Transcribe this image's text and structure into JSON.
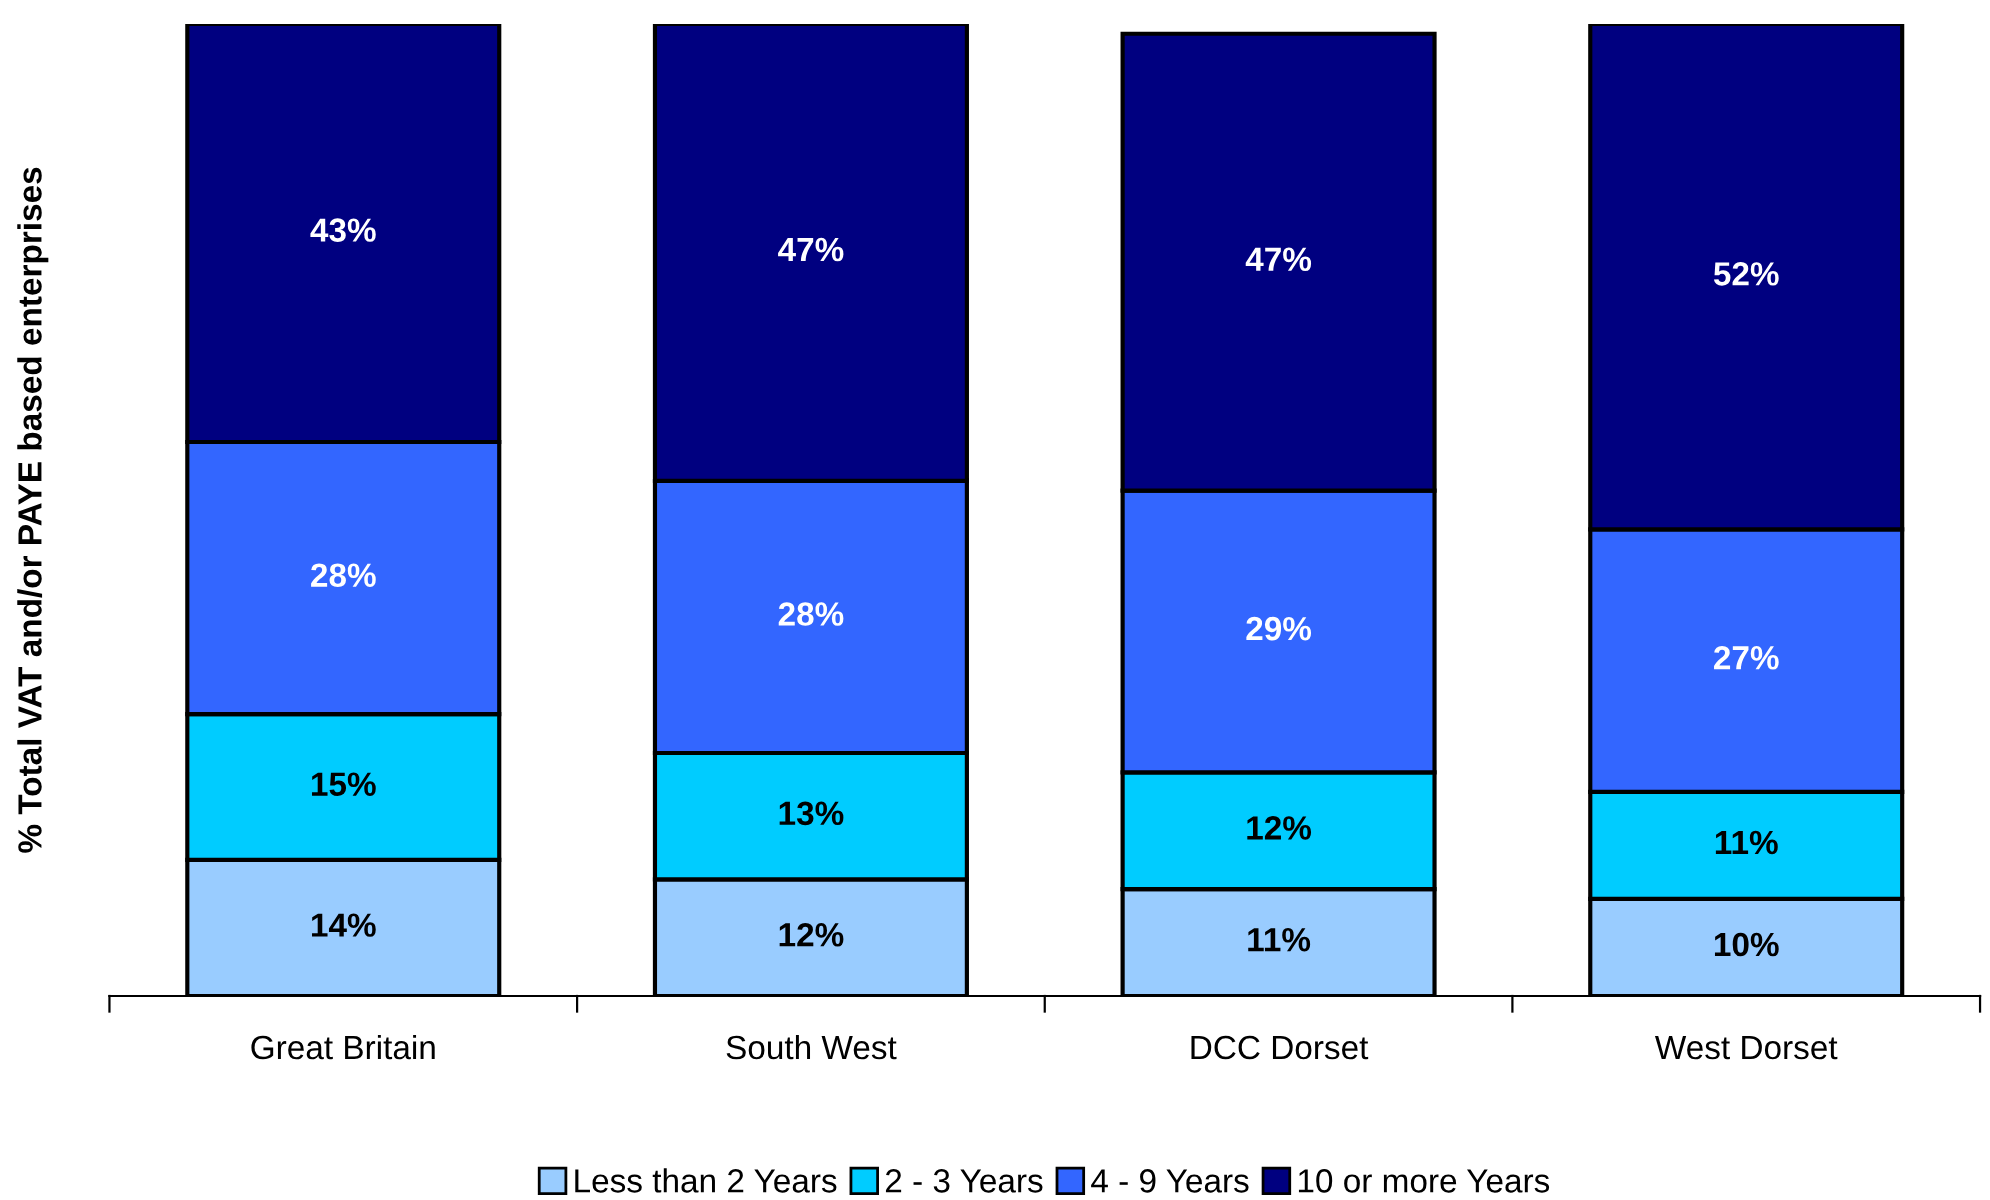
{
  "chart_data": {
    "type": "bar",
    "stacked": true,
    "ylabel": "% Total VAT and/or PAYE based enterprises",
    "categories": [
      "Great Britain",
      "South West",
      "DCC Dorset",
      "West Dorset"
    ],
    "series": [
      {
        "name": "Less than 2 Years",
        "color": "#99ccff",
        "values": [
          14,
          12,
          11,
          10
        ],
        "value_labels": [
          "14%",
          "12%",
          "11%",
          "10%"
        ]
      },
      {
        "name": "2 - 3 Years",
        "color": "#00ccff",
        "values": [
          15,
          13,
          12,
          11
        ],
        "value_labels": [
          "15%",
          "13%",
          "12%",
          "11%"
        ]
      },
      {
        "name": "4 - 9 Years",
        "color": "#3366ff",
        "values": [
          28,
          28,
          29,
          27
        ],
        "value_labels": [
          "28%",
          "28%",
          "29%",
          "27%"
        ]
      },
      {
        "name": "10 or more Years",
        "color": "#000080",
        "values": [
          43,
          47,
          47,
          52
        ],
        "value_labels": [
          "43%",
          "47%",
          "47%",
          "52%"
        ]
      }
    ],
    "ylim": [
      0,
      100
    ],
    "tick_labels": "x",
    "grid": false,
    "legend": "bottom"
  }
}
